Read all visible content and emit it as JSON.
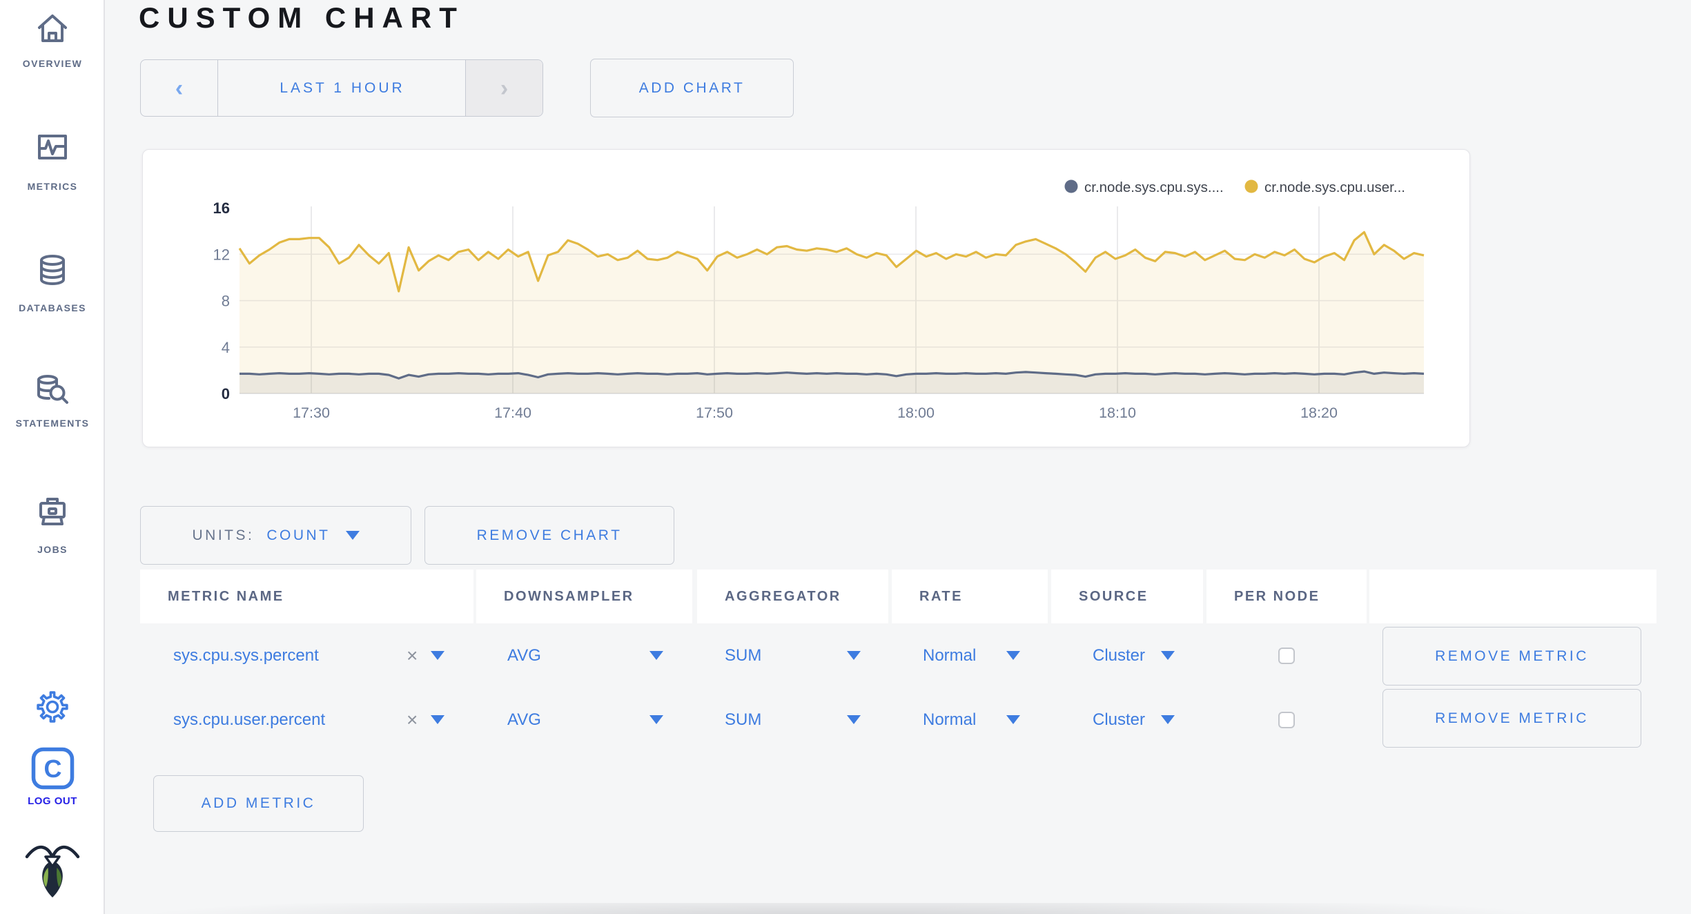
{
  "header": {
    "title": "CUSTOM CHART"
  },
  "toolbar": {
    "time_range": "LAST 1 HOUR",
    "prev_icon": "chevron-left",
    "next_icon": "chevron-right",
    "add_chart_label": "ADD CHART"
  },
  "chart_controls": {
    "units_label": "UNITS:",
    "units_value": "COUNT",
    "remove_chart_label": "REMOVE CHART",
    "add_metric_label": "ADD METRIC"
  },
  "sidebar": {
    "items": [
      {
        "id": "overview",
        "label": "OVERVIEW",
        "icon": "home-icon"
      },
      {
        "id": "metrics",
        "label": "METRICS",
        "icon": "graph-icon"
      },
      {
        "id": "databases",
        "label": "DATABASES",
        "icon": "database-icon"
      },
      {
        "id": "statements",
        "label": "STATEMENTS",
        "icon": "database-search-icon"
      },
      {
        "id": "jobs",
        "label": "JOBS",
        "icon": "briefcase-icon"
      }
    ],
    "logout_label": "LOG OUT",
    "gear_icon": "gear-icon",
    "logout_icon": "cockroach-c-icon",
    "logo_icon": "cockroach-logo"
  },
  "table": {
    "columns": [
      "METRIC NAME",
      "DOWNSAMPLER",
      "AGGREGATOR",
      "RATE",
      "SOURCE",
      "PER NODE",
      ""
    ],
    "rows": [
      {
        "metric_name": "sys.cpu.sys.percent",
        "clear": "×",
        "downsampler": "AVG",
        "aggregator": "SUM",
        "rate": "Normal",
        "source": "Cluster",
        "per_node_checked": false,
        "remove_label": "REMOVE METRIC"
      },
      {
        "metric_name": "sys.cpu.user.percent",
        "clear": "×",
        "downsampler": "AVG",
        "aggregator": "SUM",
        "rate": "Normal",
        "source": "Cluster",
        "per_node_checked": false,
        "remove_label": "REMOVE METRIC"
      }
    ]
  },
  "colors": {
    "accent_blue": "#3e7ce0",
    "slate": "#5f6c87",
    "series_sys": "#5f6c87",
    "series_user": "#e2b842",
    "logout_blue": "#2621e6",
    "axis_dark": "#242c41",
    "axis_gray": "#707c94",
    "grid": "#e5e5e9"
  },
  "chart_data": {
    "type": "area",
    "title": "",
    "xlabel": "",
    "ylabel": "",
    "ylim": [
      0,
      16
    ],
    "y_ticks": [
      16,
      12,
      8,
      4,
      0
    ],
    "x_tick_labels": [
      "17:30",
      "17:40",
      "17:50",
      "18:00",
      "18:10",
      "18:20"
    ],
    "grid": true,
    "legend_position": "top-right",
    "series": [
      {
        "name": "cr.node.sys.cpu.sys....",
        "color": "#5f6c87",
        "values": [
          1.7,
          1.7,
          1.65,
          1.7,
          1.75,
          1.7,
          1.7,
          1.75,
          1.7,
          1.65,
          1.7,
          1.7,
          1.65,
          1.7,
          1.7,
          1.6,
          1.3,
          1.6,
          1.45,
          1.65,
          1.7,
          1.7,
          1.75,
          1.7,
          1.7,
          1.65,
          1.7,
          1.7,
          1.75,
          1.6,
          1.4,
          1.65,
          1.7,
          1.75,
          1.7,
          1.7,
          1.75,
          1.7,
          1.65,
          1.7,
          1.75,
          1.7,
          1.7,
          1.65,
          1.7,
          1.7,
          1.75,
          1.65,
          1.7,
          1.75,
          1.7,
          1.7,
          1.75,
          1.7,
          1.75,
          1.8,
          1.75,
          1.7,
          1.75,
          1.7,
          1.75,
          1.7,
          1.7,
          1.65,
          1.7,
          1.65,
          1.5,
          1.65,
          1.7,
          1.7,
          1.75,
          1.7,
          1.7,
          1.75,
          1.7,
          1.7,
          1.75,
          1.7,
          1.8,
          1.85,
          1.8,
          1.75,
          1.7,
          1.65,
          1.6,
          1.45,
          1.65,
          1.7,
          1.7,
          1.75,
          1.7,
          1.7,
          1.65,
          1.7,
          1.75,
          1.7,
          1.7,
          1.65,
          1.7,
          1.75,
          1.7,
          1.65,
          1.7,
          1.7,
          1.75,
          1.7,
          1.75,
          1.7,
          1.65,
          1.7,
          1.7,
          1.65,
          1.8,
          1.9,
          1.7,
          1.8,
          1.75,
          1.7,
          1.75,
          1.7
        ]
      },
      {
        "name": "cr.node.sys.cpu.user...",
        "color": "#e2b842",
        "values": [
          12.5,
          11.2,
          11.9,
          12.4,
          13.0,
          13.3,
          13.3,
          13.4,
          13.4,
          12.6,
          11.2,
          11.7,
          12.8,
          11.9,
          11.2,
          12.1,
          8.8,
          12.6,
          10.6,
          11.4,
          11.9,
          11.5,
          12.2,
          12.4,
          11.5,
          12.2,
          11.6,
          12.4,
          11.8,
          12.2,
          9.7,
          11.9,
          12.2,
          13.2,
          12.9,
          12.4,
          11.8,
          12.0,
          11.5,
          11.7,
          12.3,
          11.6,
          11.5,
          11.7,
          12.2,
          11.9,
          11.6,
          10.6,
          11.8,
          12.2,
          11.7,
          12.0,
          12.4,
          12.0,
          12.6,
          12.7,
          12.4,
          12.3,
          12.5,
          12.4,
          12.2,
          12.5,
          12.0,
          11.7,
          12.1,
          11.9,
          10.9,
          11.6,
          12.3,
          11.8,
          12.1,
          11.6,
          12.0,
          11.8,
          12.2,
          11.7,
          12.0,
          11.9,
          12.8,
          13.1,
          13.3,
          12.9,
          12.5,
          12.0,
          11.3,
          10.5,
          11.7,
          12.2,
          11.6,
          11.9,
          12.4,
          11.7,
          11.4,
          12.2,
          12.1,
          11.8,
          12.2,
          11.5,
          11.9,
          12.3,
          11.6,
          11.5,
          12.0,
          11.7,
          12.2,
          11.9,
          12.4,
          11.6,
          11.3,
          11.8,
          12.1,
          11.5,
          13.2,
          13.9,
          12.0,
          12.8,
          12.3,
          11.6,
          12.1,
          11.9
        ]
      }
    ]
  }
}
